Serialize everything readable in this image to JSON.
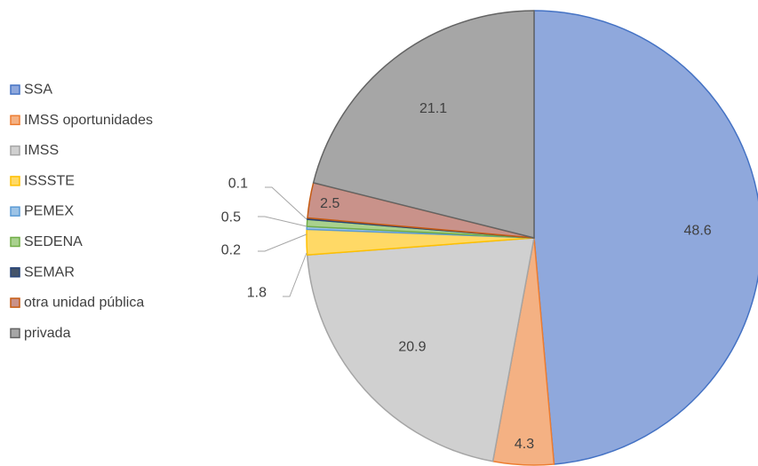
{
  "chart_data": {
    "type": "pie",
    "title": "",
    "legend_position": "left",
    "slices": [
      {
        "label": "SSA",
        "value": 48.6,
        "color": "#8fa8dc",
        "edge": "#4472c4"
      },
      {
        "label": "IMSS oportunidades",
        "value": 4.3,
        "color": "#f4b183",
        "edge": "#ed7d31"
      },
      {
        "label": "IMSS",
        "value": 20.9,
        "color": "#d0d0d0",
        "edge": "#a5a5a5"
      },
      {
        "label": "ISSSTE",
        "value": 1.8,
        "color": "#ffd966",
        "edge": "#ffc000"
      },
      {
        "label": "PEMEX",
        "value": 0.2,
        "color": "#9dc3e6",
        "edge": "#5b9bd5"
      },
      {
        "label": "SEDENA",
        "value": 0.5,
        "color": "#a9d18e",
        "edge": "#70ad47"
      },
      {
        "label": "SEMAR",
        "value": 0.1,
        "color": "#44546a",
        "edge": "#264478"
      },
      {
        "label": "otra unidad pública",
        "value": 2.5,
        "color": "#c9928a",
        "edge": "#c55a11"
      },
      {
        "label": "privada",
        "value": 21.1,
        "color": "#a6a6a6",
        "edge": "#636363"
      }
    ]
  }
}
